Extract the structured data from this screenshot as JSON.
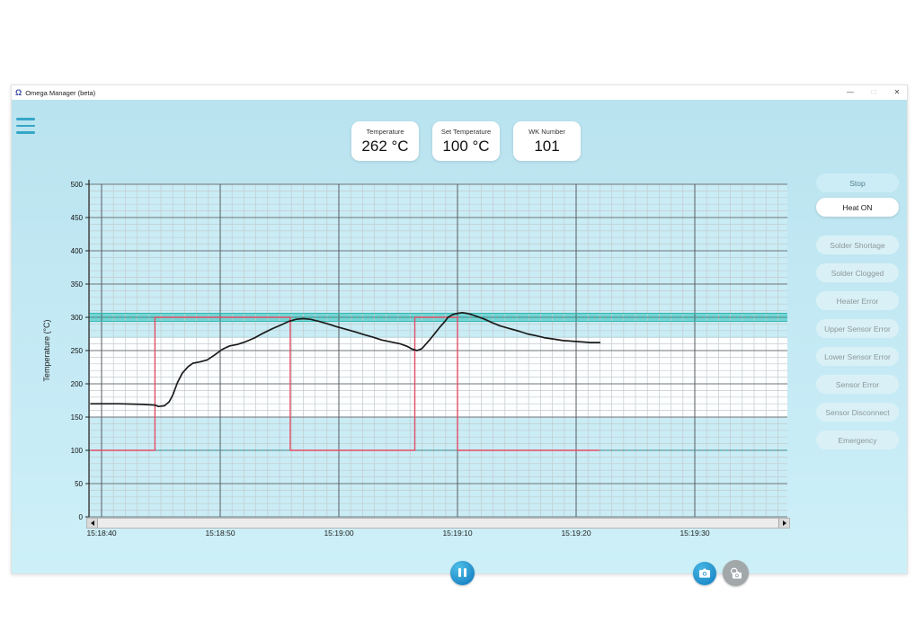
{
  "titlebar": {
    "title": "Omega Manager (beta)"
  },
  "icons": {
    "app": "Ω",
    "minimize": "—",
    "maximize": "□",
    "close": "✕",
    "menu": "hamburger-bars",
    "pause": "pause-bars",
    "snapshot": "camera",
    "snapshot_multi": "camera-burst",
    "scroll_left": "left-triangle",
    "scroll_right": "right-triangle"
  },
  "cards": [
    {
      "label": "Temperature",
      "value": "262 °C"
    },
    {
      "label": "Set Temperature",
      "value": "100 °C"
    },
    {
      "label": "WK Number",
      "value": "101"
    }
  ],
  "sidebar": {
    "stop_label": "Stop",
    "heat_label": "Heat ON",
    "alarms": [
      "Solder Shortage",
      "Solder Clogged",
      "Heater Error",
      "Upper Sensor Error",
      "Lower Sensor Error",
      "Sensor Error",
      "Sensor Disconnect",
      "Emergency"
    ]
  },
  "chart_data": {
    "type": "line",
    "title": "",
    "xlabel": "",
    "ylabel": "Temperature (°C)",
    "ylim": [
      0,
      500
    ],
    "y_major_step": 50,
    "y_minor_step": 10,
    "x_domain_s": [
      -1.1,
      57.9
    ],
    "x_major_step_s": 10,
    "x_minor_step_s": 1,
    "x_tick_labels": [
      "15:18:40",
      "15:18:50",
      "15:19:00",
      "15:19:10",
      "15:19:20",
      "15:19:30"
    ],
    "x_tick_times_s": [
      0,
      10,
      20,
      30,
      40,
      50
    ],
    "grid": true,
    "legend": "none",
    "zones": [
      {
        "from": 270,
        "to": 500
      },
      {
        "from": 0,
        "to": 150
      }
    ],
    "target_band": {
      "from": 294,
      "to": 306,
      "center": 300
    },
    "reference_lines": [
      300,
      100
    ],
    "colors": {
      "plot_bg": "#fdfeff",
      "zone": "#c9ecf5",
      "zone_edge": "#abdbe9",
      "band": "#65d1ce",
      "band_edge": "#38b7b4",
      "grid_minor": "#c4cbce",
      "grid_major_h": "#6e7478",
      "grid_major_v": "#575c61",
      "reference": "#239a9a",
      "axis": "#222222"
    },
    "series": [
      {
        "name": "set-temperature",
        "color": "#e44d64",
        "width": 1.4,
        "points": [
          [
            -0.9,
            100
          ],
          [
            4.5,
            100
          ],
          [
            4.5,
            300
          ],
          [
            15.9,
            300
          ],
          [
            15.9,
            100
          ],
          [
            26.4,
            100
          ],
          [
            26.4,
            300
          ],
          [
            30.0,
            300
          ],
          [
            30.0,
            100
          ],
          [
            41.9,
            100
          ]
        ]
      },
      {
        "name": "temperature",
        "color": "#1b1b1b",
        "width": 1.7,
        "points": [
          [
            -0.9,
            170
          ],
          [
            1.5,
            170
          ],
          [
            3.5,
            169
          ],
          [
            4.5,
            168
          ],
          [
            4.8,
            166
          ],
          [
            5.3,
            167
          ],
          [
            5.7,
            173
          ],
          [
            6.0,
            183
          ],
          [
            6.4,
            202
          ],
          [
            6.8,
            216
          ],
          [
            7.3,
            226
          ],
          [
            7.7,
            231
          ],
          [
            8.3,
            233
          ],
          [
            8.9,
            236
          ],
          [
            9.5,
            243
          ],
          [
            10.2,
            252
          ],
          [
            10.8,
            257
          ],
          [
            11.4,
            259
          ],
          [
            12.1,
            263
          ],
          [
            12.9,
            269
          ],
          [
            13.6,
            276
          ],
          [
            14.4,
            283
          ],
          [
            15.2,
            289
          ],
          [
            15.8,
            294
          ],
          [
            16.4,
            297
          ],
          [
            17.0,
            298
          ],
          [
            17.6,
            297
          ],
          [
            18.3,
            294
          ],
          [
            19.1,
            290
          ],
          [
            19.8,
            286
          ],
          [
            20.6,
            282
          ],
          [
            21.4,
            278
          ],
          [
            22.1,
            274
          ],
          [
            22.9,
            270
          ],
          [
            23.6,
            266
          ],
          [
            24.4,
            263
          ],
          [
            25.2,
            260
          ],
          [
            25.8,
            256
          ],
          [
            26.2,
            252
          ],
          [
            26.6,
            250
          ],
          [
            27.0,
            253
          ],
          [
            27.3,
            259
          ],
          [
            27.7,
            267
          ],
          [
            28.1,
            276
          ],
          [
            28.5,
            285
          ],
          [
            28.9,
            293
          ],
          [
            29.2,
            300
          ],
          [
            29.6,
            304
          ],
          [
            30.0,
            306
          ],
          [
            30.4,
            307
          ],
          [
            30.8,
            306
          ],
          [
            31.2,
            304
          ],
          [
            31.7,
            301
          ],
          [
            32.3,
            297
          ],
          [
            32.9,
            292
          ],
          [
            33.6,
            287
          ],
          [
            34.4,
            283
          ],
          [
            35.2,
            279
          ],
          [
            35.9,
            275
          ],
          [
            36.7,
            272
          ],
          [
            37.4,
            269
          ],
          [
            38.2,
            267
          ],
          [
            38.9,
            265
          ],
          [
            39.7,
            264
          ],
          [
            40.5,
            263
          ],
          [
            41.2,
            262
          ],
          [
            42.0,
            262
          ]
        ]
      }
    ]
  }
}
